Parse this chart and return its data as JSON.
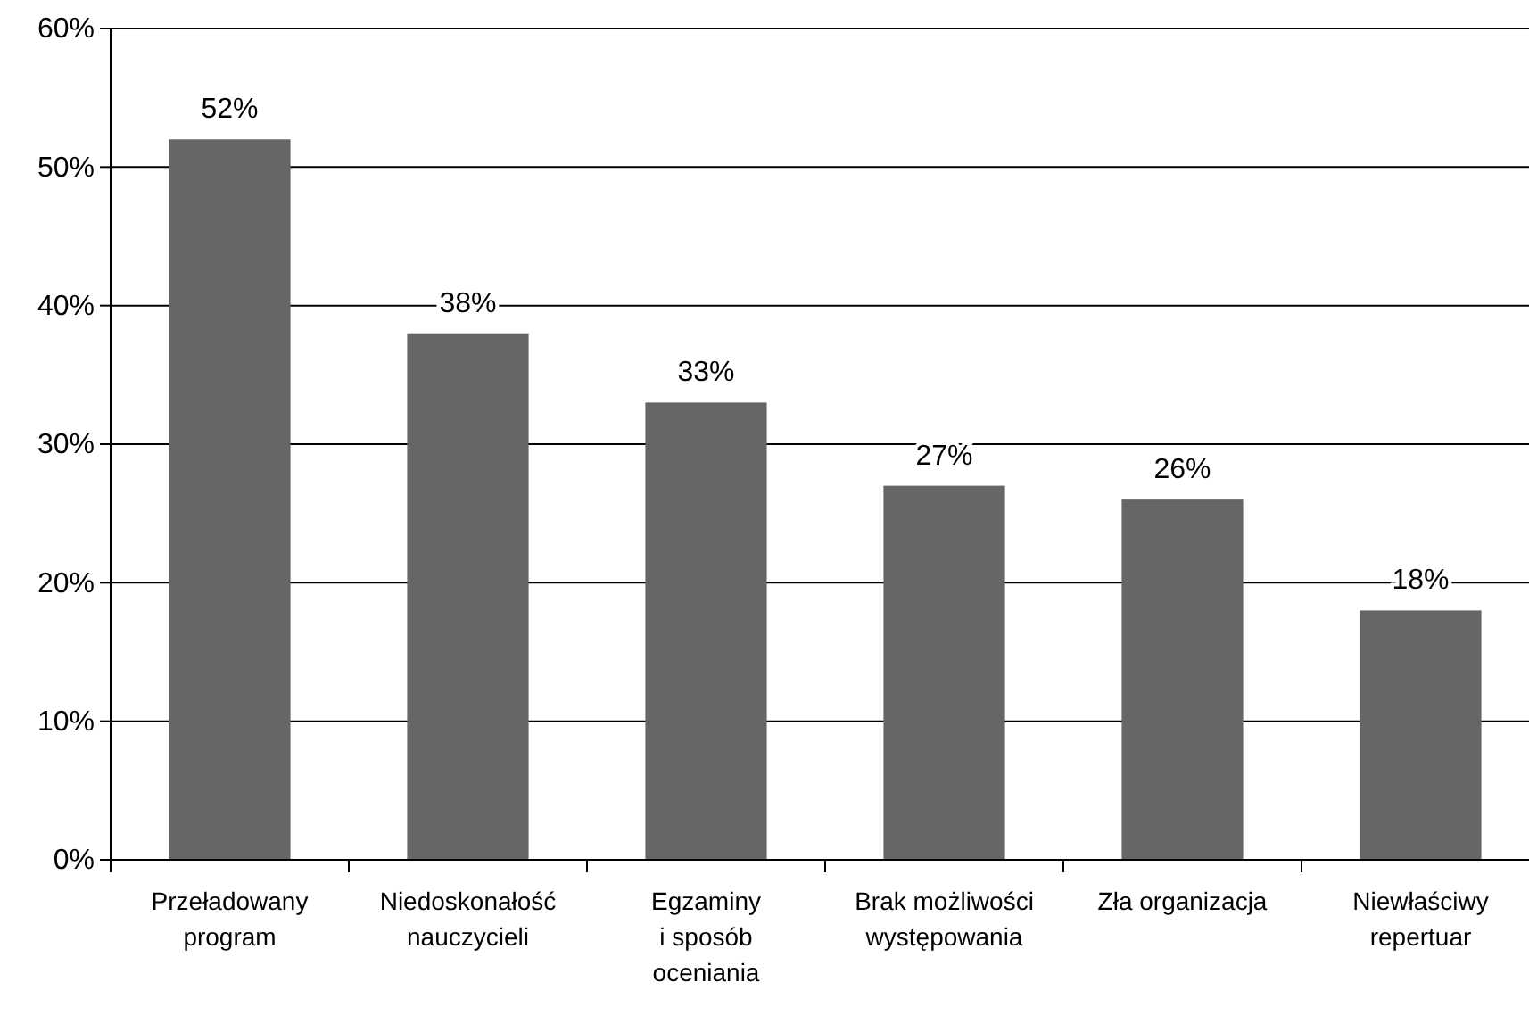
{
  "chart_data": {
    "type": "bar",
    "categories": [
      "Przeładowany\nprogram",
      "Niedoskonałość\nnauczycieli",
      "Egzaminy\ni sposób\noceniania",
      "Brak możliwości\nwystępowania",
      "Zła organizacja",
      "Niewłaściwy\nrepertuar"
    ],
    "values": [
      52,
      38,
      33,
      27,
      26,
      18
    ],
    "value_labels": [
      "52%",
      "38%",
      "33%",
      "27%",
      "26%",
      "18%"
    ],
    "color": "#666666",
    "ylim": [
      0,
      60
    ],
    "yticks": [
      {
        "value": 0,
        "label": "0%"
      },
      {
        "value": 10,
        "label": "10%"
      },
      {
        "value": 20,
        "label": "20%"
      },
      {
        "value": 30,
        "label": "30%"
      },
      {
        "value": 40,
        "label": "40%"
      },
      {
        "value": 50,
        "label": "50%"
      },
      {
        "value": 60,
        "label": "60%"
      }
    ],
    "grid": "y"
  }
}
